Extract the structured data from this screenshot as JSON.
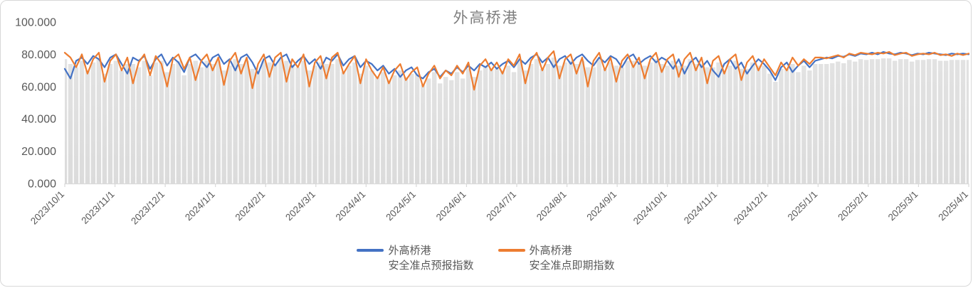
{
  "title": "外高桥港",
  "colors": {
    "forecast_line": "#4472C4",
    "spot_line": "#ED7D31",
    "columns": "#DBDBDB",
    "axis_text": "#595959",
    "title_text": "#7F7F7F",
    "axis_line": "#D9D9D9",
    "card_border": "#D8D8D8"
  },
  "legend": {
    "items": [
      {
        "label_line1": "外高桥港",
        "label_line2": "安全准点预报指数",
        "color": "#4472C4"
      },
      {
        "label_line1": "外高桥港",
        "label_line2": "安全准点即期指数",
        "color": "#ED7D31"
      }
    ]
  },
  "chart_data": {
    "type": "line",
    "title": "外高桥港",
    "xlabel": "",
    "ylabel": "",
    "ylim": [
      0,
      100
    ],
    "grid": false,
    "legend_position": "bottom",
    "y_tick_labels": [
      "0.000",
      "20.000",
      "40.000",
      "60.000",
      "80.000",
      "100.000"
    ],
    "x_tick_labels": [
      "2023/10/1",
      "2023/11/1",
      "2023/12/1",
      "2024/1/1",
      "2024/2/1",
      "2024/3/1",
      "2024/4/1",
      "2024/5/1",
      "2024/6/1",
      "2024/7/1",
      "2024/8/1",
      "2024/9/1",
      "2024/10/1",
      "2024/11/1",
      "2024/12/1",
      "2025/1/1",
      "2025/2/1",
      "2025/3/1",
      "2025/4/1"
    ],
    "background_columns": {
      "color": "#DBDBDB",
      "note": "gray columns behind the lines, tops ~3-4 index points below the upper line"
    },
    "series": [
      {
        "name": "外高桥港 安全准点预报指数",
        "color": "#4472C4",
        "values": [
          71,
          65,
          76,
          78,
          74,
          79,
          77,
          72,
          78,
          80,
          74,
          68,
          78,
          76,
          79,
          71,
          77,
          80,
          73,
          78,
          75,
          69,
          78,
          80,
          76,
          72,
          78,
          80,
          74,
          77,
          70,
          78,
          80,
          75,
          68,
          77,
          79,
          73,
          78,
          80,
          72,
          76,
          79,
          74,
          77,
          71,
          78,
          76,
          80,
          73,
          77,
          79,
          72,
          76,
          74,
          70,
          73,
          68,
          71,
          66,
          70,
          72,
          67,
          65,
          69,
          71,
          66,
          70,
          68,
          72,
          69,
          73,
          70,
          74,
          72,
          75,
          71,
          74,
          76,
          72,
          77,
          74,
          78,
          80,
          75,
          78,
          72,
          77,
          79,
          74,
          78,
          80,
          76,
          73,
          78,
          75,
          79,
          77,
          72,
          78,
          80,
          74,
          77,
          79,
          75,
          78,
          76,
          71,
          77,
          68,
          75,
          78,
          72,
          76,
          70,
          66,
          74,
          77,
          71,
          75,
          68,
          73,
          77,
          74,
          70,
          64,
          72,
          75,
          69,
          73,
          76,
          72,
          76,
          77,
          78,
          77.5,
          79,
          78.5,
          80,
          79,
          80.5,
          80,
          81,
          80,
          81.5,
          80.5,
          80,
          81,
          80.5,
          79.5,
          80.5,
          80,
          81,
          80.5,
          80,
          79.5,
          80.5,
          80,
          80.5,
          80
        ]
      },
      {
        "name": "外高桥港 安全准点即期指数",
        "color": "#ED7D31",
        "values": [
          81,
          78,
          72,
          80,
          68,
          77,
          81,
          63,
          76,
          80,
          70,
          78,
          62,
          75,
          80,
          67,
          79,
          74,
          60,
          77,
          80,
          71,
          78,
          64,
          76,
          80,
          70,
          78,
          61,
          76,
          81,
          68,
          78,
          59,
          74,
          80,
          66,
          78,
          81,
          63,
          77,
          72,
          80,
          60,
          75,
          79,
          65,
          78,
          81,
          68,
          74,
          79,
          62,
          77,
          70,
          65,
          72,
          62,
          70,
          74,
          64,
          69,
          72,
          60,
          68,
          73,
          65,
          70,
          67,
          73,
          68,
          75,
          58,
          73,
          77,
          70,
          75,
          68,
          77,
          73,
          80,
          62,
          76,
          81,
          70,
          78,
          82,
          65,
          77,
          80,
          68,
          78,
          60,
          76,
          81,
          70,
          78,
          63,
          76,
          80,
          72,
          78,
          65,
          77,
          81,
          69,
          77,
          80,
          66,
          77,
          81,
          70,
          78,
          62,
          76,
          79,
          68,
          77,
          80,
          64,
          75,
          79,
          70,
          77,
          72,
          67,
          75,
          70,
          78,
          73,
          77,
          74,
          78,
          78,
          77.5,
          78.5,
          79.5,
          78,
          80.5,
          79.5,
          81,
          80.5,
          80,
          81,
          80.5,
          81.5,
          79.5,
          80.5,
          81,
          79,
          80,
          80.5,
          80,
          81,
          79.5,
          80,
          79,
          80.5,
          79.5,
          80.5
        ]
      }
    ]
  }
}
